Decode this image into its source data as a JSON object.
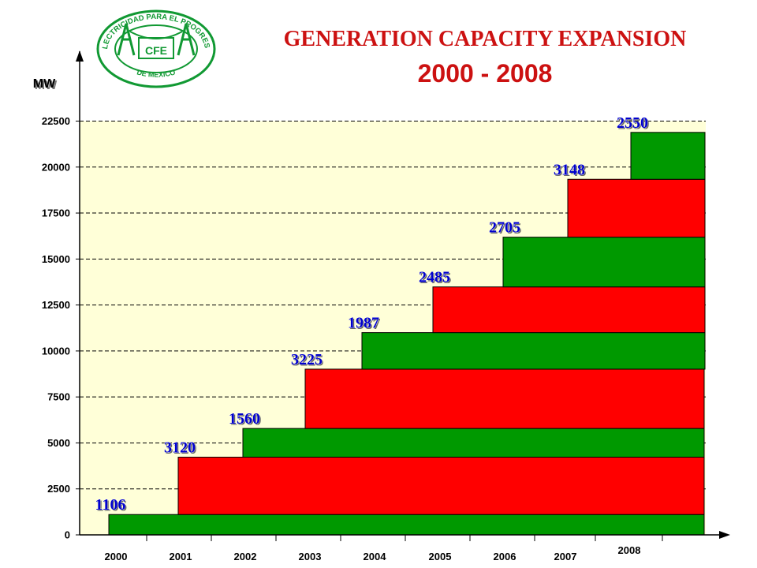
{
  "logo": {
    "top_text": "ELECTRICIDAD PARA EL PROGRESO",
    "bottom_text": "DE MEXICO",
    "center_text": "CFE"
  },
  "chart_data": {
    "type": "bar",
    "title": "GENERATION CAPACITY  EXPANSION",
    "subtitle": "2000 - 2008",
    "ylabel": "MW",
    "ylim": [
      0,
      22500
    ],
    "yticks": [
      0,
      2500,
      5000,
      7500,
      10000,
      12500,
      15000,
      17500,
      20000,
      22500
    ],
    "grid": true,
    "background_color": "#ffffd8",
    "colors": [
      "#009900",
      "#ff0000"
    ],
    "categories": [
      "2000",
      "2001",
      "2002",
      "2003",
      "2004",
      "2005",
      "2006",
      "2007",
      "2008"
    ],
    "values": [
      1106,
      3120,
      1560,
      3225,
      1987,
      2485,
      2705,
      3148,
      2550
    ],
    "label_color": "#0000cc"
  }
}
